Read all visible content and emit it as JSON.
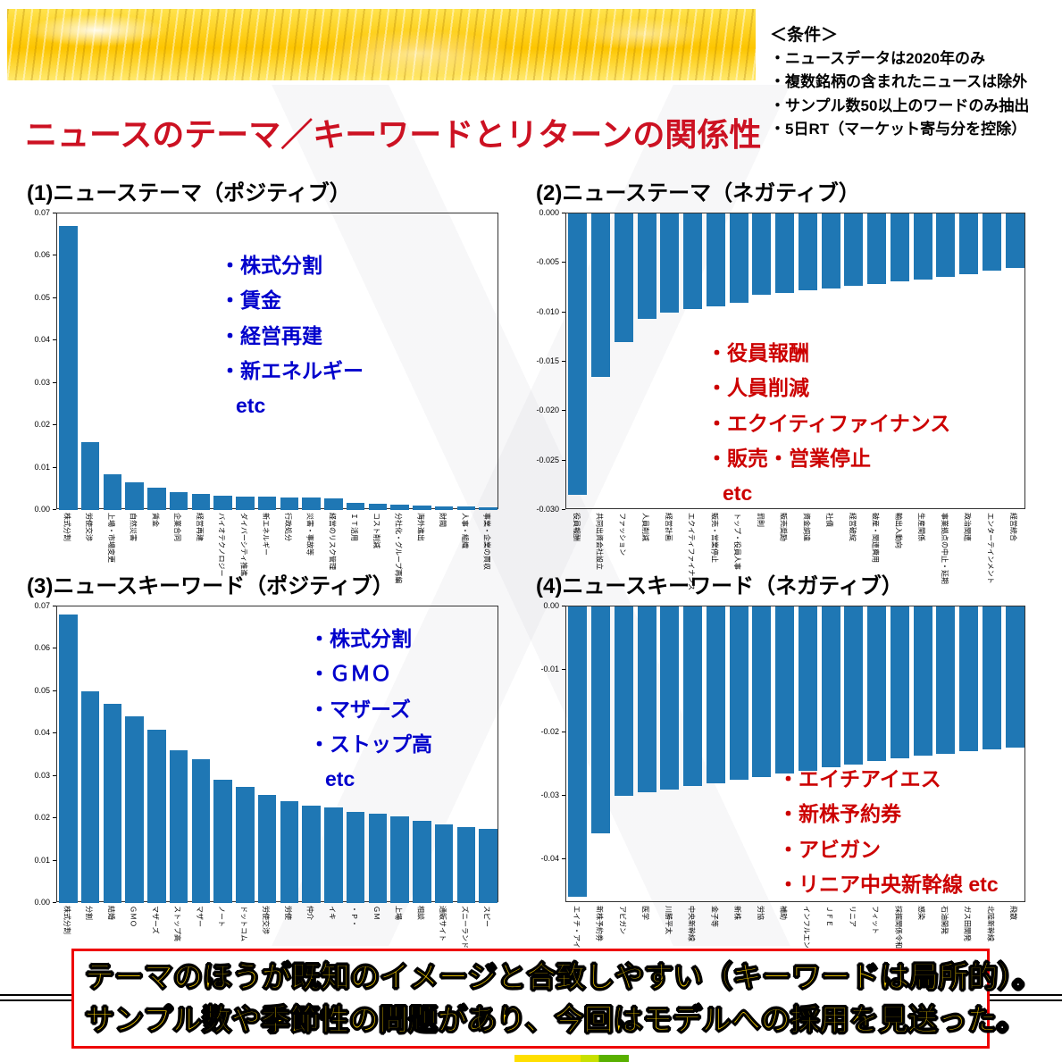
{
  "title": "ニュースのテーマ／キーワードとリターンの関係性",
  "conditions": {
    "title": "＜条件＞",
    "items": [
      "・ニュースデータは2020年のみ",
      "・複数銘柄の含まれたニュースは除外",
      "・サンプル数50以上のワードのみ抽出",
      "・5日RT（マーケット寄与分を控除）"
    ]
  },
  "footer": {
    "line1": "テーマのほうが既知のイメージと合致しやすい（キーワードは局所的）。",
    "line2": "サンプル数や季節性の問題があり、今回はモデルへの採用を見送った。"
  },
  "colors": {
    "bar": "#1f77b4",
    "title": "#cc1122",
    "positive_annotation": "#0000cc",
    "negative_annotation": "#cc0000",
    "footer_text": "#ffd400",
    "footer_border": "#ee0000"
  },
  "chart_data": [
    {
      "type": "bar",
      "label": "(1)ニューステーマ（ポジティブ）",
      "categories": [
        "株式分割",
        "労使交渉",
        "上場・市場変更",
        "自然災害",
        "賃金",
        "企業合同",
        "経営再建",
        "バイオテクノロジー",
        "ダイバーシティ推進",
        "新エネルギー",
        "行政処分",
        "災害・事故等",
        "経営のリスク管理",
        "ＩＴ活用",
        "コスト削減",
        "分社化・グループ再編",
        "海外進出",
        "財閥",
        "人事・組織",
        "事業・企業の買収"
      ],
      "values": [
        0.067,
        0.016,
        0.0085,
        0.0065,
        0.0052,
        0.0042,
        0.0037,
        0.0034,
        0.0032,
        0.0031,
        0.003,
        0.0029,
        0.0028,
        0.0016,
        0.0014,
        0.0013,
        0.0011,
        0.0009,
        0.0008,
        0.0007
      ],
      "ylim": [
        0,
        0.07
      ],
      "ytick_step": 0.01,
      "ytick_decimals": 2,
      "xlabel": "",
      "ylabel": "",
      "annotations": [
        "・株式分割",
        "・賃金",
        "・経営再建",
        "・新エネルギー",
        "etc"
      ],
      "annotation_color": "#0000cc"
    },
    {
      "type": "bar",
      "label": "(2)ニューステーマ（ネガティブ）",
      "categories": [
        "役員報酬",
        "共同出資会社設立",
        "ファッション",
        "人員削減",
        "経営計画",
        "エクイティファイナンス",
        "販売・営業停止",
        "トップ・役員人事",
        "罰則",
        "販売奨励",
        "資金調達",
        "社債",
        "経営破綻",
        "破産・関連費用",
        "輸出入動向",
        "生産関係",
        "事業拠点の中止・延期",
        "政治関連",
        "エンターテインメント",
        "経営統合"
      ],
      "values": [
        -0.0285,
        -0.0165,
        -0.013,
        -0.0107,
        -0.01,
        -0.0097,
        -0.0094,
        -0.009,
        -0.0082,
        -0.008,
        -0.0078,
        -0.0076,
        -0.0073,
        -0.0071,
        -0.0069,
        -0.0067,
        -0.0064,
        -0.0061,
        -0.0058,
        -0.0055
      ],
      "ylim": [
        -0.03,
        0
      ],
      "ytick_step": 0.005,
      "ytick_decimals": 3,
      "xlabel": "",
      "ylabel": "",
      "annotations": [
        "・役員報酬",
        "・人員削減",
        "・エクイティファイナンス",
        "・販売・営業停止",
        "etc"
      ],
      "annotation_color": "#cc0000"
    },
    {
      "type": "bar",
      "label": "(3)ニュースキーワード（ポジティブ）",
      "categories": [
        "株式分割",
        "分割",
        "結婚",
        "ＧＭＯ",
        "マザーズ",
        "ストップ高",
        "マザー",
        "ノート",
        "ドットコム",
        "労使交渉",
        "労使",
        "仲介",
        "イキ",
        "・Ｐ・",
        "ＧＭ",
        "上場",
        "相談",
        "通販サイト",
        "ズニーランド",
        "スピー"
      ],
      "values": [
        0.068,
        0.05,
        0.047,
        0.044,
        0.041,
        0.036,
        0.034,
        0.029,
        0.0275,
        0.0255,
        0.024,
        0.023,
        0.0225,
        0.0215,
        0.021,
        0.0205,
        0.0195,
        0.0185,
        0.018,
        0.0175
      ],
      "ylim": [
        0,
        0.07
      ],
      "ytick_step": 0.01,
      "ytick_decimals": 2,
      "xlabel": "",
      "ylabel": "",
      "annotations": [
        "・株式分割",
        "・ＧＭＯ",
        "・マザーズ",
        "・ストップ高",
        "etc"
      ],
      "annotation_color": "#0000cc"
    },
    {
      "type": "bar",
      "label": "(4)ニュースキーワード（ネガティブ）",
      "categories": [
        "エイチ・アイ・エス",
        "新株予約券",
        "アビガン",
        "医学",
        "川勝平太",
        "中央新幹線",
        "金子等",
        "新株",
        "労協",
        "補助",
        "インフルエンザ",
        "ＪＦＥ",
        "リニア",
        "フィット",
        "採掘関係令和",
        "感染",
        "石油開発",
        "ガス田開発",
        "北陸新幹線",
        "飛散"
      ],
      "values": [
        -0.046,
        -0.036,
        -0.03,
        -0.0295,
        -0.029,
        -0.0285,
        -0.028,
        -0.0275,
        -0.027,
        -0.0265,
        -0.026,
        -0.0255,
        -0.025,
        -0.0245,
        -0.024,
        -0.0237,
        -0.0233,
        -0.023,
        -0.0227,
        -0.0223
      ],
      "ylim": [
        -0.047,
        0
      ],
      "ytick_step": 0.01,
      "ytick_decimals": 2,
      "xlabel": "",
      "ylabel": "",
      "annotations": [
        "・エイチアイエス",
        "・新株予約券",
        "・アビガン",
        "・リニア中央新幹線 etc"
      ],
      "annotation_color": "#cc0000"
    }
  ]
}
